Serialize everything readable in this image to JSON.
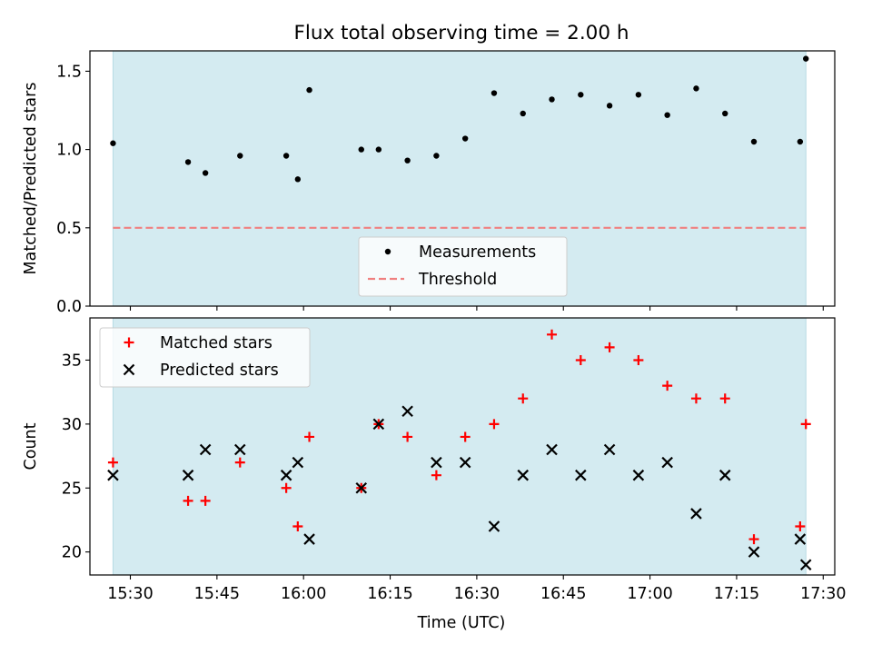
{
  "chart_data": [
    {
      "type": "scatter",
      "title": "Flux total observing time = 2.00 h",
      "xlabel": "",
      "ylabel": "Matched/Predicted stars",
      "xlim": [
        "15:23",
        "17:32"
      ],
      "ylim": [
        0,
        1.63
      ],
      "yticks": [
        0.0,
        0.5,
        1.0,
        1.5
      ],
      "ytick_labels": [
        "0.0",
        "0.5",
        "1.0",
        "1.5"
      ],
      "shaded_span": [
        "15:27",
        "17:27"
      ],
      "shade_color": "#d4ebf1",
      "legend": {
        "placement": "lower-center",
        "entries": [
          "Measurements",
          "Threshold"
        ]
      },
      "series": [
        {
          "name": "Measurements",
          "marker": "dot",
          "color": "#000000",
          "x": [
            "15:27",
            "15:40",
            "15:43",
            "15:49",
            "15:57",
            "15:59",
            "16:01",
            "16:10",
            "16:13",
            "16:18",
            "16:23",
            "16:28",
            "16:33",
            "16:38",
            "16:43",
            "16:48",
            "16:53",
            "16:58",
            "17:03",
            "17:08",
            "17:13",
            "17:18",
            "17:26",
            "17:27"
          ],
          "y": [
            1.04,
            0.92,
            0.85,
            0.96,
            0.96,
            0.81,
            1.38,
            1.0,
            1.0,
            0.93,
            0.96,
            1.07,
            1.36,
            1.23,
            1.32,
            1.35,
            1.28,
            1.35,
            1.22,
            1.39,
            1.23,
            1.05,
            1.05,
            1.58
          ]
        },
        {
          "name": "Threshold",
          "style": "dashed",
          "color": "#f08080",
          "x": [
            "15:27",
            "17:27"
          ],
          "y": [
            0.5,
            0.5
          ]
        }
      ]
    },
    {
      "type": "scatter",
      "title": "",
      "xlabel": "Time (UTC)",
      "ylabel": "Count",
      "xlim": [
        "15:23",
        "17:32"
      ],
      "ylim": [
        18.2,
        38.3
      ],
      "yticks": [
        20,
        25,
        30,
        35
      ],
      "ytick_labels": [
        "20",
        "25",
        "30",
        "35"
      ],
      "xticks": [
        "15:30",
        "15:45",
        "16:00",
        "16:15",
        "16:30",
        "16:45",
        "17:00",
        "17:15",
        "17:30"
      ],
      "shaded_span": [
        "15:27",
        "17:27"
      ],
      "shade_color": "#d4ebf1",
      "legend": {
        "placement": "upper-left",
        "entries": [
          "Matched stars",
          "Predicted stars"
        ]
      },
      "series": [
        {
          "name": "Matched stars",
          "marker": "plus",
          "color": "#ff0000",
          "x": [
            "15:27",
            "15:40",
            "15:43",
            "15:49",
            "15:57",
            "15:59",
            "16:01",
            "16:10",
            "16:13",
            "16:18",
            "16:23",
            "16:28",
            "16:33",
            "16:38",
            "16:43",
            "16:48",
            "16:53",
            "16:58",
            "17:03",
            "17:08",
            "17:13",
            "17:18",
            "17:26",
            "17:27"
          ],
          "y": [
            27,
            24,
            24,
            27,
            25,
            22,
            29,
            25,
            30,
            29,
            26,
            29,
            30,
            32,
            37,
            35,
            36,
            35,
            33,
            32,
            32,
            21,
            22,
            30
          ]
        },
        {
          "name": "Predicted stars",
          "marker": "x",
          "color": "#000000",
          "x": [
            "15:27",
            "15:40",
            "15:43",
            "15:49",
            "15:57",
            "15:59",
            "16:01",
            "16:10",
            "16:13",
            "16:18",
            "16:23",
            "16:28",
            "16:33",
            "16:38",
            "16:43",
            "16:48",
            "16:53",
            "16:58",
            "17:03",
            "17:08",
            "17:13",
            "17:18",
            "17:26",
            "17:27"
          ],
          "y": [
            26,
            26,
            28,
            28,
            26,
            27,
            21,
            25,
            30,
            31,
            27,
            27,
            22,
            26,
            28,
            26,
            28,
            26,
            27,
            23,
            26,
            20,
            21,
            19
          ]
        }
      ]
    }
  ]
}
